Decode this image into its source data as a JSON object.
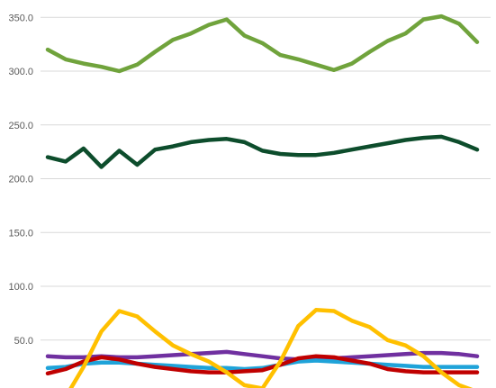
{
  "chart_data": {
    "type": "line",
    "title": "",
    "xlabel": "",
    "ylabel": "",
    "ylim": [
      0,
      375
    ],
    "grid": true,
    "legend": "none",
    "y_ticks": [
      "50.0",
      "100.0",
      "150.0",
      "200.0",
      "250.0",
      "300.0",
      "350.0"
    ],
    "y_tick_values": [
      50,
      100,
      150,
      200,
      250,
      300,
      350
    ],
    "x": [
      1,
      2,
      3,
      4,
      5,
      6,
      7,
      8,
      9,
      10,
      11,
      12,
      13,
      14,
      15,
      16,
      17,
      18,
      19,
      20,
      21,
      22,
      23,
      24,
      25
    ],
    "series": [
      {
        "color": "#70a33c",
        "values": [
          320,
          311,
          307,
          304,
          300,
          306,
          318,
          329,
          335,
          343,
          348,
          333,
          326,
          315,
          311,
          306,
          301,
          307,
          318,
          328,
          335,
          348,
          351,
          344,
          327
        ]
      },
      {
        "color": "#0d4d2c",
        "values": [
          220,
          216,
          228,
          211,
          226,
          213,
          227,
          230,
          234,
          236,
          237,
          234,
          226,
          223,
          222,
          222,
          224,
          227,
          230,
          233,
          236,
          238,
          239,
          234,
          227
        ]
      },
      {
        "color": "#7030a0",
        "values": [
          35,
          34,
          34,
          35,
          34,
          34,
          35,
          36,
          37,
          38,
          39,
          37,
          35,
          33,
          32,
          32,
          33,
          34,
          35,
          36,
          37,
          38,
          38,
          37,
          35
        ]
      },
      {
        "color": "#1fa3d9",
        "values": [
          24,
          25,
          28,
          29,
          29,
          28,
          27,
          26,
          25,
          24,
          24,
          23,
          24,
          27,
          30,
          31,
          30,
          29,
          28,
          27,
          26,
          25,
          25,
          25,
          25
        ]
      },
      {
        "color": "#c00000",
        "values": [
          19,
          23,
          30,
          34,
          32,
          28,
          25,
          23,
          21,
          20,
          20,
          21,
          22,
          27,
          33,
          35,
          34,
          31,
          28,
          23,
          21,
          20,
          20,
          20,
          20
        ]
      },
      {
        "color": "#ffc000",
        "values": [
          -5,
          -3,
          25,
          58,
          77,
          72,
          58,
          45,
          37,
          30,
          20,
          8,
          5,
          30,
          63,
          78,
          77,
          68,
          62,
          50,
          45,
          35,
          20,
          8,
          2
        ]
      }
    ]
  }
}
